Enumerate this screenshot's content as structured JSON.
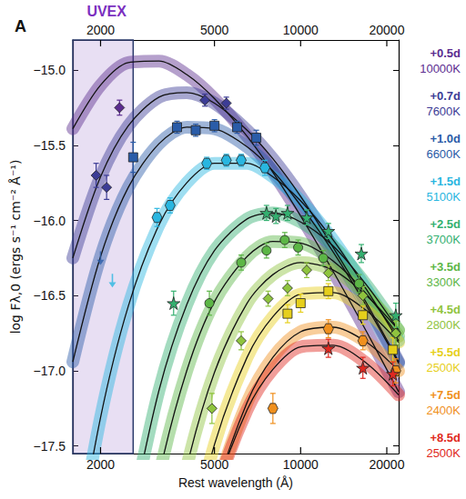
{
  "chart_data": {
    "type": "scatter",
    "panel": "A",
    "xlabel": "Rest wavelength (Å)",
    "ylabel": "log Fλ,0 (ergs s⁻¹ cm⁻² Å⁻¹)",
    "log": "x",
    "grid": false,
    "legend": "right",
    "xlim": [
      1600,
      22000
    ],
    "xticks": [
      2000,
      5000,
      10000,
      20000
    ],
    "ylim": [
      -17.55,
      -14.8
    ],
    "yticks": [
      {
        "value": -17.5,
        "label": "−17.5"
      },
      {
        "value": -17,
        "label": "−17.0"
      },
      {
        "value": -16.5,
        "label": "−16.5"
      },
      {
        "value": -16,
        "label": "−16.0"
      },
      {
        "value": -15.5,
        "label": "−15.5"
      },
      {
        "value": -15,
        "label": "−15.0"
      }
    ],
    "uvex_band": {
      "label": "UVEX",
      "range": [
        1600,
        2600
      ]
    },
    "series": [
      {
        "name": "+0.5d",
        "temperature": "10000K",
        "color": "#5b2c8f",
        "marker": "diamond",
        "curve_x": [
          1600,
          2000,
          2500,
          3200,
          4000,
          5000,
          6500,
          8000,
          10000,
          13000,
          17000,
          22000
        ],
        "curve_values": [
          -15.39,
          -15.1,
          -14.95,
          -14.94,
          -15.03,
          -15.19,
          -15.44,
          -15.68,
          -15.97,
          -16.34,
          -16.74,
          -17.14
        ],
        "x": [
          2330
        ],
        "values": [
          -15.25
        ],
        "errors": [
          0.05
        ]
      },
      {
        "name": "+0.7d",
        "temperature": "7600K",
        "color": "#3c3c96",
        "marker": "diamond",
        "curve_x": [
          1600,
          2000,
          2500,
          3200,
          4000,
          5000,
          6500,
          8000,
          10000,
          13000,
          17000,
          22000
        ],
        "curve_values": [
          -16.25,
          -15.71,
          -15.37,
          -15.18,
          -15.15,
          -15.22,
          -15.4,
          -15.59,
          -15.84,
          -16.18,
          -16.55,
          -16.94
        ],
        "x": [
          1930,
          2100,
          4630,
          5500
        ],
        "values": [
          -15.7,
          -15.78,
          -15.2,
          -15.22
        ],
        "errors": [
          0.08,
          0.08,
          0.04,
          0.04
        ]
      },
      {
        "name": "+1.0d",
        "temperature": "6600K",
        "color": "#2a5ca8",
        "marker": "square",
        "curve_x": [
          1600,
          2000,
          2500,
          3200,
          4000,
          5000,
          6500,
          8000,
          10000,
          13000,
          17000,
          22000
        ],
        "curve_values": [
          -16.94,
          -16.24,
          -15.78,
          -15.49,
          -15.38,
          -15.39,
          -15.51,
          -15.67,
          -15.9,
          -16.21,
          -16.57,
          -16.95
        ],
        "x": [
          2600,
          3700,
          4300,
          5000,
          6000,
          7000
        ],
        "values": [
          -15.58,
          -15.38,
          -15.4,
          -15.37,
          -15.38,
          -15.45
        ],
        "errors": [
          0.1,
          0.04,
          0.04,
          0.04,
          0.04,
          0.05
        ],
        "upper_limit_x": [
          2000
        ],
        "upper_limit_values": [
          -16.25
        ]
      },
      {
        "name": "+1.5d",
        "temperature": "5100K",
        "color": "#29b6e0",
        "marker": "hexagon",
        "curve_x": [
          1600,
          2000,
          2500,
          3200,
          4000,
          5000,
          6500,
          8000,
          10000,
          13000,
          17000,
          22000
        ],
        "curve_values": [
          -18.35,
          -17.31,
          -16.57,
          -16.03,
          -15.75,
          -15.62,
          -15.62,
          -15.71,
          -15.87,
          -16.13,
          -16.46,
          -16.8
        ],
        "x": [
          3150,
          3500,
          4700,
          5500,
          6200,
          7500
        ],
        "values": [
          -15.98,
          -15.9,
          -15.62,
          -15.6,
          -15.6,
          -15.65
        ],
        "errors": [
          0.06,
          0.05,
          0.04,
          0.04,
          0.04,
          0.05
        ],
        "upper_limit_x": [
          2200
        ],
        "upper_limit_values": [
          -16.4
        ]
      },
      {
        "name": "+2.5d",
        "temperature": "3700K",
        "color": "#34b070",
        "marker": "star",
        "curve_x": [
          2500,
          3200,
          4000,
          5000,
          6500,
          8000,
          10000,
          13000,
          17000,
          22000
        ],
        "curve_values": [
          -18.07,
          -17.13,
          -16.56,
          -16.2,
          -15.99,
          -15.95,
          -16.01,
          -16.17,
          -16.43,
          -16.73
        ],
        "x": [
          3600,
          7600,
          8200,
          9000,
          10500,
          12500,
          16300,
          21500
        ],
        "values": [
          -16.55,
          -15.95,
          -15.97,
          -15.95,
          -15.98,
          -16.07,
          -16.22,
          -16.63
        ],
        "errors": [
          0.08,
          0.05,
          0.05,
          0.05,
          0.05,
          0.05,
          0.06,
          0.08
        ]
      },
      {
        "name": "+3.5d",
        "temperature": "3300K",
        "color": "#5cb646",
        "marker": "circle",
        "curve_x": [
          2500,
          3200,
          4000,
          5000,
          6500,
          8000,
          10000,
          13000,
          17000,
          22000
        ],
        "curve_values": [
          -18.82,
          -17.7,
          -17.0,
          -16.54,
          -16.24,
          -16.14,
          -16.15,
          -16.27,
          -16.49,
          -16.77
        ],
        "x": [
          4800,
          6200,
          7600,
          8800,
          9800,
          12000,
          16000,
          21500
        ],
        "values": [
          -16.55,
          -16.28,
          -16.2,
          -16.13,
          -16.18,
          -16.25,
          -16.42,
          -16.75
        ],
        "errors": [
          0.08,
          0.05,
          0.05,
          0.05,
          0.05,
          0.05,
          0.06,
          0.08
        ]
      },
      {
        "name": "+4.5d",
        "temperature": "2800K",
        "color": "#8fc43e",
        "marker": "diamond",
        "curve_x": [
          3200,
          4000,
          5000,
          6500,
          8000,
          10000,
          13000,
          17000,
          22000
        ],
        "curve_values": [
          -18.55,
          -17.64,
          -17.01,
          -16.55,
          -16.36,
          -16.28,
          -16.33,
          -16.5,
          -16.73
        ],
        "x": [
          4900,
          6200,
          7700,
          9000,
          10500,
          12500,
          16500,
          21500
        ],
        "values": [
          -17.25,
          -16.8,
          -16.52,
          -16.45,
          -16.33,
          -16.35,
          -16.5,
          -16.75
        ],
        "errors": [
          0.1,
          0.06,
          0.05,
          0.05,
          0.05,
          0.05,
          0.06,
          0.08
        ]
      },
      {
        "name": "+5.5d",
        "temperature": "2500K",
        "color": "#e6cf1b",
        "marker": "square",
        "curve_x": [
          4000,
          5000,
          6500,
          8000,
          10000,
          13000,
          17000,
          22000
        ],
        "curve_values": [
          -18.26,
          -17.49,
          -16.91,
          -16.64,
          -16.49,
          -16.48,
          -16.6,
          -16.81
        ],
        "x": [
          9000,
          10000,
          12500,
          16500,
          21000
        ],
        "values": [
          -16.62,
          -16.55,
          -16.47,
          -16.63,
          -16.86
        ],
        "errors": [
          0.06,
          0.06,
          0.05,
          0.06,
          0.08
        ]
      },
      {
        "name": "+7.5d",
        "temperature": "2400K",
        "color": "#f0901e",
        "marker": "hexagon",
        "curve_x": [
          4000,
          5000,
          6500,
          8000,
          10000,
          13000,
          17000,
          22000
        ],
        "curve_values": [
          -18.66,
          -17.84,
          -17.21,
          -16.91,
          -16.74,
          -16.71,
          -16.81,
          -17.0
        ],
        "x": [
          8000,
          12500,
          16500,
          21500
        ],
        "values": [
          -17.25,
          -16.72,
          -16.8,
          -17.0
        ],
        "errors": [
          0.1,
          0.06,
          0.06,
          0.08
        ]
      },
      {
        "name": "+8.5d",
        "temperature": "2500K",
        "color": "#e02820",
        "marker": "star",
        "curve_x": [
          4000,
          5000,
          6500,
          8000,
          10000,
          13000,
          17000,
          22000
        ],
        "curve_values": [
          -18.61,
          -17.84,
          -17.26,
          -16.99,
          -16.84,
          -16.83,
          -16.95,
          -17.16
        ],
        "x": [
          12500,
          16500,
          21000
        ],
        "values": [
          -16.85,
          -16.98,
          -17.02
        ],
        "errors": [
          0.06,
          0.07,
          0.08
        ]
      }
    ]
  }
}
